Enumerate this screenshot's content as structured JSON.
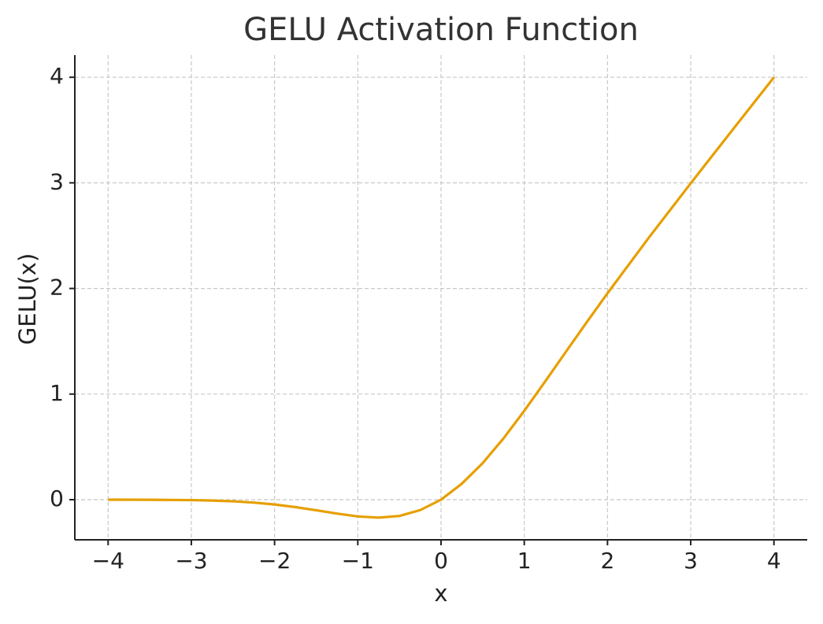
{
  "chart_data": {
    "type": "line",
    "title": "GELU Activation Function",
    "x_label": "x",
    "y_label": "GELU(x)",
    "x": [
      -4,
      -3.5,
      -3,
      -2.75,
      -2.5,
      -2.25,
      -2,
      -1.75,
      -1.5,
      -1.25,
      -1,
      -0.75,
      -0.5,
      -0.25,
      0,
      0.25,
      0.5,
      0.75,
      1,
      1.25,
      1.5,
      1.75,
      2,
      2.5,
      3,
      3.5,
      4
    ],
    "values": [
      -0.0001,
      -0.0008,
      -0.004,
      -0.0082,
      -0.0155,
      -0.0275,
      -0.0455,
      -0.0702,
      -0.1002,
      -0.132,
      -0.1587,
      -0.17,
      -0.1543,
      -0.0987,
      0,
      0.1513,
      0.3457,
      0.58,
      0.8413,
      1.118,
      1.3998,
      1.6798,
      1.9545,
      2.4845,
      2.996,
      3.4992,
      3.9999
    ],
    "color": "#e69f00",
    "xlim": [
      -4.4,
      4.4
    ],
    "xticks": [
      {
        "value": -4,
        "label": "−4"
      },
      {
        "value": -3,
        "label": "−3"
      },
      {
        "value": -2,
        "label": "−2"
      },
      {
        "value": -1,
        "label": "−1"
      },
      0,
      1,
      2,
      3,
      4
    ],
    "ylim": [
      -0.38,
      4.21
    ],
    "yticks": [
      0,
      1,
      2,
      3,
      4
    ],
    "grid": true
  }
}
